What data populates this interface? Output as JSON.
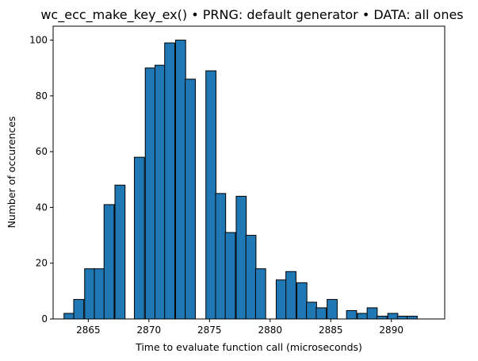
{
  "chart_data": {
    "type": "bar",
    "title": "wc_ecc_make_key_ex() • PRNG: default generator • DATA: all ones",
    "xlabel": "Time to evaluate function call (microseconds)",
    "ylabel": "Number of occurences",
    "bar_color": "#1f77b4",
    "edge_color": "#000000",
    "bin_width": 0.8333,
    "xlim": [
      2862.1,
      2894.4
    ],
    "ylim": [
      0,
      105
    ],
    "xticks": [
      2865,
      2870,
      2875,
      2880,
      2885,
      2890
    ],
    "yticks": [
      0,
      20,
      40,
      60,
      80,
      100
    ],
    "bins": [
      {
        "x": 2863.0,
        "value": 2
      },
      {
        "x": 2863.8,
        "value": 7
      },
      {
        "x": 2864.7,
        "value": 18
      },
      {
        "x": 2865.5,
        "value": 18
      },
      {
        "x": 2866.3,
        "value": 41
      },
      {
        "x": 2867.2,
        "value": 48
      },
      {
        "x": 2868.8,
        "value": 58
      },
      {
        "x": 2869.7,
        "value": 90
      },
      {
        "x": 2870.5,
        "value": 91
      },
      {
        "x": 2871.3,
        "value": 99
      },
      {
        "x": 2872.2,
        "value": 100
      },
      {
        "x": 2873.0,
        "value": 86
      },
      {
        "x": 2874.7,
        "value": 89
      },
      {
        "x": 2875.5,
        "value": 45
      },
      {
        "x": 2876.3,
        "value": 31
      },
      {
        "x": 2877.2,
        "value": 44
      },
      {
        "x": 2878.0,
        "value": 30
      },
      {
        "x": 2878.8,
        "value": 18
      },
      {
        "x": 2880.5,
        "value": 14
      },
      {
        "x": 2881.3,
        "value": 17
      },
      {
        "x": 2882.2,
        "value": 13
      },
      {
        "x": 2883.0,
        "value": 6
      },
      {
        "x": 2883.8,
        "value": 4
      },
      {
        "x": 2884.7,
        "value": 7
      },
      {
        "x": 2886.3,
        "value": 3
      },
      {
        "x": 2887.2,
        "value": 2
      },
      {
        "x": 2888.0,
        "value": 4
      },
      {
        "x": 2888.8,
        "value": 1
      },
      {
        "x": 2889.7,
        "value": 2
      },
      {
        "x": 2890.5,
        "value": 1
      },
      {
        "x": 2891.3,
        "value": 1
      }
    ]
  }
}
